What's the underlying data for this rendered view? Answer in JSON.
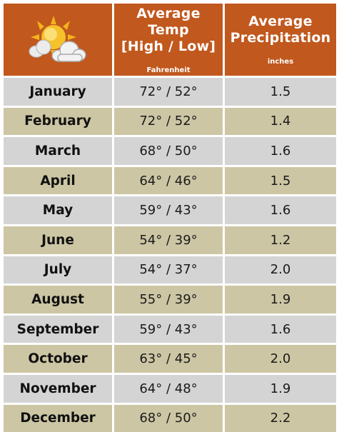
{
  "header": {
    "icon": "partly-cloudy-icon",
    "temp_title_line1": "Average Temp",
    "temp_title_line2": "[High / Low]",
    "temp_unit": "Fahrenheit",
    "precip_title_line1": "Average",
    "precip_title_line2": "Precipitation",
    "precip_unit": "inches"
  },
  "colors": {
    "header_bg": "#c1581d",
    "row_gray": "#d4d4d4",
    "row_tan": "#cdc6a4"
  },
  "rows": [
    {
      "month": "January",
      "temp": "72° / 52°",
      "precip": "1.5"
    },
    {
      "month": "February",
      "temp": "72° / 52°",
      "precip": "1.4"
    },
    {
      "month": "March",
      "temp": "68° / 50°",
      "precip": "1.6"
    },
    {
      "month": "April",
      "temp": "64° / 46°",
      "precip": "1.5"
    },
    {
      "month": "May",
      "temp": "59° / 43°",
      "precip": "1.6"
    },
    {
      "month": "June",
      "temp": "54° / 39°",
      "precip": "1.2"
    },
    {
      "month": "July",
      "temp": "54° / 37°",
      "precip": "2.0"
    },
    {
      "month": "August",
      "temp": "55° / 39°",
      "precip": "1.9"
    },
    {
      "month": "September",
      "temp": "59° / 43°",
      "precip": "1.6"
    },
    {
      "month": "October",
      "temp": "63° / 45°",
      "precip": "2.0"
    },
    {
      "month": "November",
      "temp": "64° / 48°",
      "precip": "1.9"
    },
    {
      "month": "December",
      "temp": "68° / 50°",
      "precip": "2.2"
    }
  ]
}
